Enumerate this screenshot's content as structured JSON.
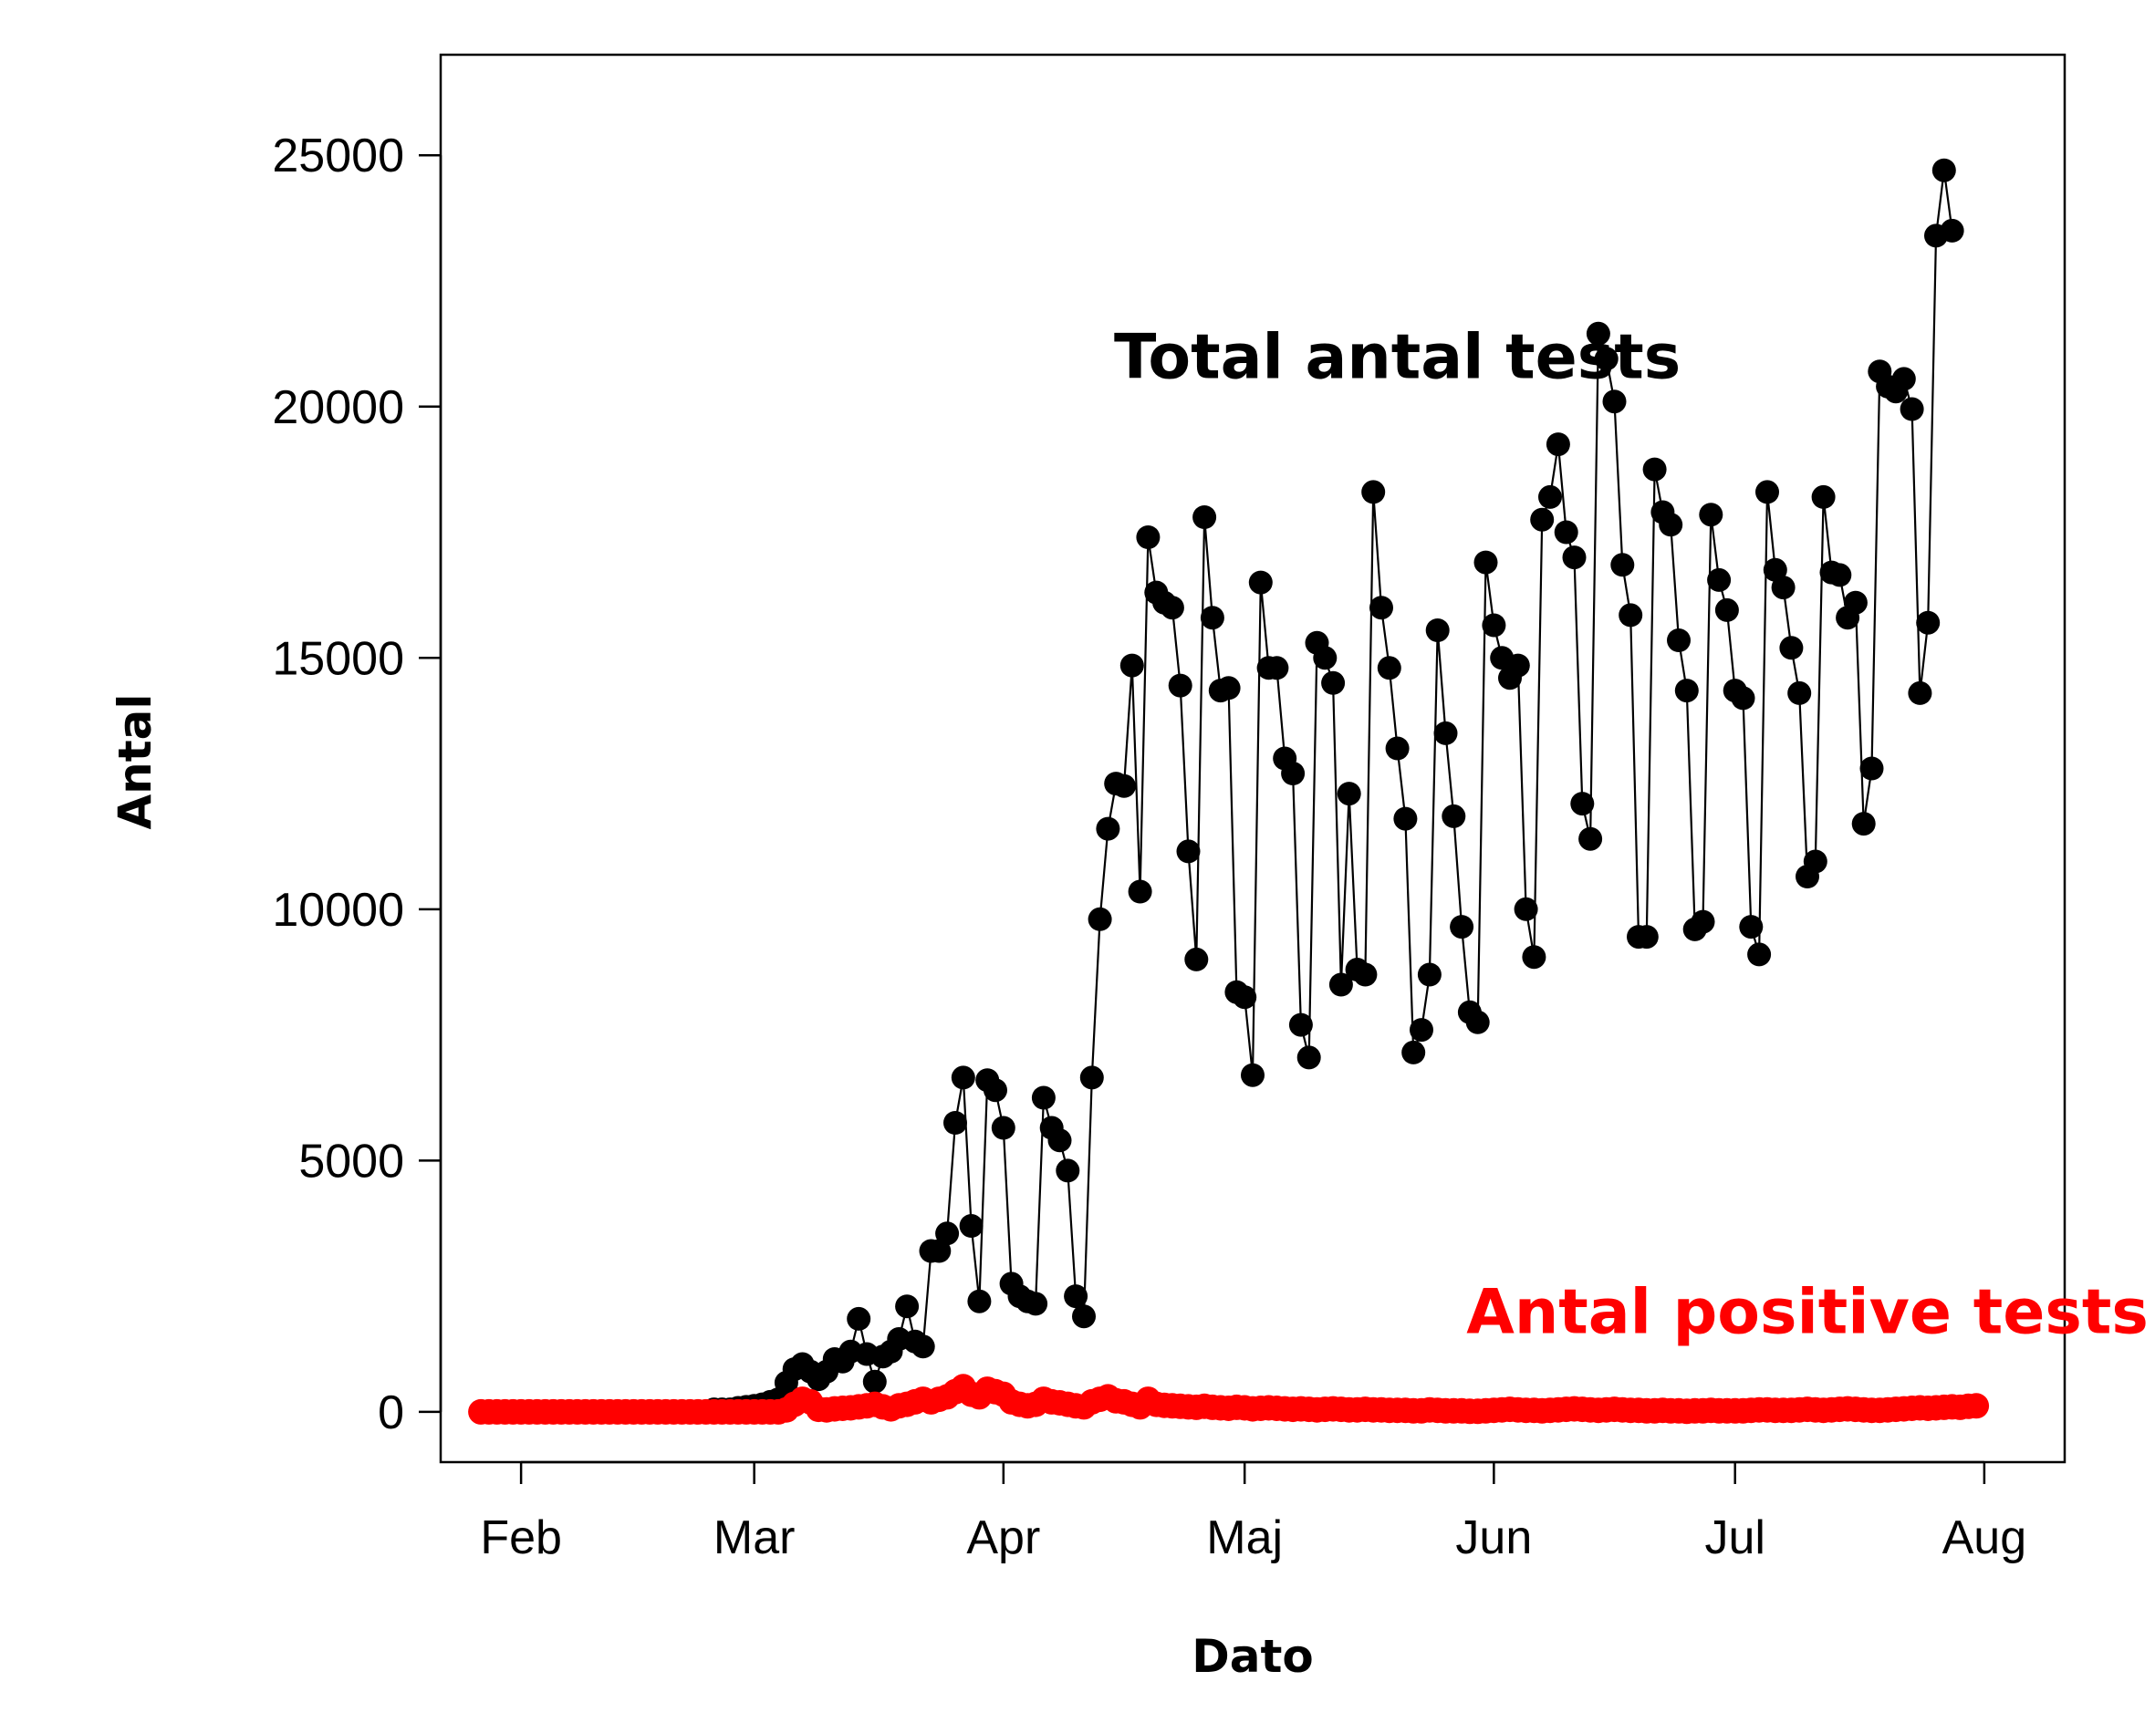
{
  "chart_data": {
    "type": "line",
    "xlabel": "Dato",
    "ylabel": "Antal",
    "ylim": [
      -1000,
      27000
    ],
    "xlim": [
      "2020-01-22",
      "2020-08-11"
    ],
    "yticks": [
      0,
      5000,
      10000,
      15000,
      20000,
      25000
    ],
    "xticks": [
      {
        "date": "2020-02-01",
        "label": "Feb"
      },
      {
        "date": "2020-03-01",
        "label": "Mar"
      },
      {
        "date": "2020-04-01",
        "label": "Apr"
      },
      {
        "date": "2020-05-01",
        "label": "Maj"
      },
      {
        "date": "2020-06-01",
        "label": "Jun"
      },
      {
        "date": "2020-07-01",
        "label": "Jul"
      },
      {
        "date": "2020-08-01",
        "label": "Aug"
      }
    ],
    "grid": false,
    "annotations": [
      {
        "text": "Total antal tests",
        "color": "#000000",
        "date": "2020-05-20",
        "y": 21000
      },
      {
        "text": "Antal positive tests",
        "color": "#ff0000",
        "date": "2020-07-10",
        "y": 2000
      }
    ],
    "series": [
      {
        "color": "#000000",
        "start_date": "2020-01-27",
        "values": [
          0,
          0,
          0,
          0,
          0,
          0,
          0,
          0,
          0,
          0,
          0,
          0,
          0,
          0,
          0,
          0,
          0,
          0,
          0,
          0,
          0,
          0,
          0,
          0,
          0,
          0,
          0,
          0,
          0,
          50,
          50,
          50,
          80,
          100,
          120,
          150,
          200,
          250,
          580,
          850,
          950,
          800,
          650,
          800,
          1050,
          1000,
          1200,
          1850,
          1150,
          600,
          1100,
          1200,
          1450,
          2100,
          1400,
          1300,
          3200,
          3200,
          3550,
          5750,
          6650,
          3700,
          2200,
          6600,
          6400,
          5650,
          2550,
          2300,
          2200,
          2150,
          6250,
          5650,
          5400,
          4800,
          2300,
          1900,
          6650,
          9800,
          11600,
          12500,
          12450,
          14850,
          10350,
          17400,
          16300,
          16100,
          16000,
          14450,
          11150,
          9000,
          17800,
          15800,
          14350,
          14400,
          8350,
          8250,
          6700,
          16500,
          14800,
          14800,
          13000,
          12700,
          7700,
          7050,
          15300,
          15000,
          14500,
          8500,
          12300,
          8800,
          8700,
          18300,
          16000,
          14800,
          13200,
          11800,
          7150,
          7600,
          8700,
          15550,
          13500,
          11850,
          9650,
          7950,
          7750,
          16900,
          15650,
          15000,
          14600,
          14850,
          10000,
          9050,
          17750,
          18200,
          19250,
          17500,
          17000,
          12100,
          11400,
          21450,
          20950,
          20100,
          16850,
          15850,
          9450,
          9450,
          18750,
          17900,
          17650,
          15350,
          14350,
          9600,
          9750,
          17850,
          16550,
          15950,
          14350,
          14200,
          9650,
          9100,
          18300,
          16750,
          16400,
          15200,
          14300,
          10650,
          10950,
          18200,
          16700,
          16650,
          15800,
          16100,
          11700,
          12800,
          20700,
          20400,
          20300,
          20550,
          19950,
          14300,
          15700,
          23400,
          24700,
          23500
        ]
      },
      {
        "color": "#ff0000",
        "start_date": "2020-01-27",
        "values": [
          0,
          0,
          0,
          0,
          0,
          0,
          0,
          0,
          0,
          0,
          0,
          0,
          0,
          0,
          0,
          0,
          0,
          0,
          0,
          0,
          0,
          0,
          0,
          0,
          0,
          0,
          0,
          0,
          0,
          0,
          0,
          0,
          0,
          0,
          0,
          0,
          0,
          0,
          40,
          150,
          250,
          200,
          50,
          40,
          60,
          70,
          80,
          100,
          120,
          150,
          100,
          60,
          120,
          150,
          200,
          250,
          200,
          250,
          300,
          400,
          500,
          350,
          300,
          450,
          400,
          350,
          200,
          150,
          120,
          150,
          250,
          200,
          180,
          150,
          120,
          100,
          200,
          250,
          300,
          220,
          200,
          150,
          100,
          250,
          150,
          130,
          120,
          110,
          100,
          90,
          110,
          90,
          80,
          70,
          90,
          80,
          60,
          70,
          80,
          70,
          60,
          50,
          60,
          50,
          40,
          50,
          60,
          50,
          40,
          40,
          50,
          40,
          40,
          30,
          30,
          30,
          20,
          20,
          40,
          30,
          20,
          20,
          20,
          10,
          10,
          20,
          30,
          40,
          50,
          40,
          30,
          30,
          20,
          30,
          40,
          50,
          60,
          50,
          40,
          30,
          40,
          50,
          40,
          30,
          30,
          20,
          20,
          30,
          20,
          20,
          10,
          20,
          20,
          30,
          20,
          20,
          20,
          20,
          30,
          40,
          40,
          30,
          30,
          30,
          40,
          50,
          40,
          30,
          40,
          50,
          60,
          50,
          40,
          30,
          30,
          40,
          50,
          60,
          70,
          80,
          70,
          80,
          90,
          100,
          90,
          110,
          120
        ]
      }
    ]
  }
}
